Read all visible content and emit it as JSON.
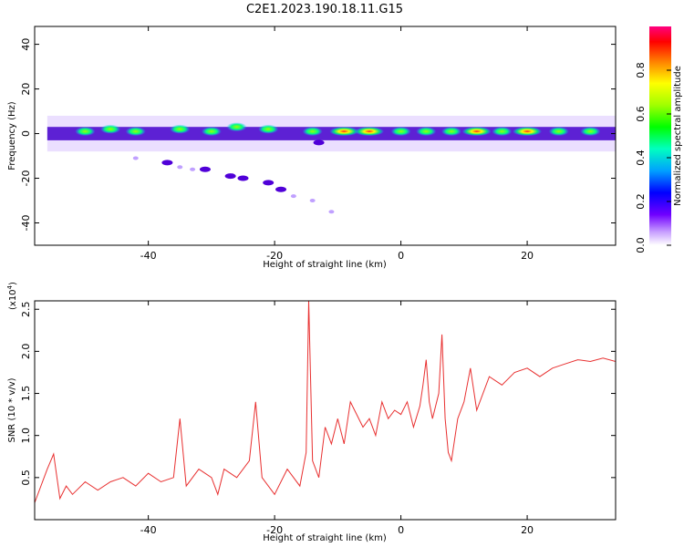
{
  "figure": {
    "title": "C2E1.2023.190.18.11.G15"
  },
  "chart_data": [
    {
      "type": "heatmap",
      "xlabel": "Height of straight line (km)",
      "ylabel": "Frequency (Hz)",
      "xlim": [
        -58,
        34
      ],
      "ylim": [
        -50,
        48
      ],
      "xticks": [
        -40,
        -20,
        0,
        20
      ],
      "yticks": [
        -40,
        -20,
        0,
        20,
        40
      ],
      "main_band": {
        "y_min": -3,
        "y_max": 3,
        "x_start": -56,
        "x_end": 34,
        "color": "#4400cc"
      },
      "hot_spots": [
        {
          "x": -50,
          "y": 1,
          "amplitude": 0.5
        },
        {
          "x": -46,
          "y": 2,
          "amplitude": 0.45
        },
        {
          "x": -42,
          "y": 1,
          "amplitude": 0.55
        },
        {
          "x": -35,
          "y": 2,
          "amplitude": 0.5
        },
        {
          "x": -30,
          "y": 1,
          "amplitude": 0.45
        },
        {
          "x": -26,
          "y": 3,
          "amplitude": 0.55
        },
        {
          "x": -21,
          "y": 2,
          "amplitude": 0.5
        },
        {
          "x": -14,
          "y": 1,
          "amplitude": 0.55
        },
        {
          "x": -9,
          "y": 1,
          "amplitude": 0.9
        },
        {
          "x": -5,
          "y": 1,
          "amplitude": 0.95
        },
        {
          "x": 0,
          "y": 1,
          "amplitude": 0.75
        },
        {
          "x": 4,
          "y": 1,
          "amplitude": 0.7
        },
        {
          "x": 8,
          "y": 1,
          "amplitude": 0.65
        },
        {
          "x": 12,
          "y": 1,
          "amplitude": 0.85
        },
        {
          "x": 16,
          "y": 1,
          "amplitude": 0.6
        },
        {
          "x": 20,
          "y": 1,
          "amplitude": 0.9
        },
        {
          "x": 25,
          "y": 1,
          "amplitude": 0.6
        },
        {
          "x": 30,
          "y": 1,
          "amplitude": 0.55
        }
      ],
      "side_blobs": [
        {
          "x": -37,
          "y": -13
        },
        {
          "x": -31,
          "y": -16
        },
        {
          "x": -27,
          "y": -19
        },
        {
          "x": -25,
          "y": -20
        },
        {
          "x": -21,
          "y": -22
        },
        {
          "x": -19,
          "y": -25
        },
        {
          "x": -13,
          "y": -4
        }
      ],
      "faint_dots": [
        {
          "x": -42,
          "y": -11
        },
        {
          "x": -35,
          "y": -15
        },
        {
          "x": -33,
          "y": -16
        },
        {
          "x": -17,
          "y": -28
        },
        {
          "x": -14,
          "y": -30
        },
        {
          "x": -11,
          "y": -35
        }
      ]
    },
    {
      "type": "line",
      "xlabel": "Height of straight line (km)",
      "ylabel": "SNR (10 * v/v)",
      "yscale_label": "(x10",
      "yscale_exponent": "4",
      "xlim": [
        -58,
        34
      ],
      "ylim": [
        0,
        26000
      ],
      "xticks": [
        -40,
        -20,
        0,
        20
      ],
      "yticks": [
        5000,
        10000,
        15000,
        20000,
        25000
      ],
      "ytick_labels": [
        "0.5",
        "1.0",
        "1.5",
        "2.0",
        "2.5"
      ],
      "series": [
        {
          "color": "#e83030",
          "x": [
            -58,
            -56,
            -55,
            -54,
            -53,
            -52,
            -50,
            -48,
            -46,
            -44,
            -42,
            -40,
            -38,
            -36,
            -35,
            -34,
            -32,
            -30,
            -29,
            -28,
            -26,
            -24,
            -23,
            -22,
            -20,
            -18,
            -16,
            -15,
            -14.6,
            -14,
            -13,
            -12,
            -11,
            -10,
            -9,
            -8,
            -6,
            -5,
            -4,
            -3,
            -2,
            -1,
            0,
            1,
            2,
            3,
            3.5,
            4,
            4.5,
            5,
            6,
            6.5,
            7,
            7.5,
            8,
            9,
            10,
            11,
            12,
            14,
            16,
            18,
            20,
            22,
            24,
            26,
            28,
            30,
            32,
            34
          ],
          "y": [
            2000,
            6000,
            7800,
            2500,
            4000,
            3000,
            4500,
            3500,
            4500,
            5000,
            4000,
            5500,
            4500,
            5000,
            12000,
            4000,
            6000,
            5000,
            3000,
            6000,
            5000,
            7000,
            14000,
            5000,
            3000,
            6000,
            4000,
            8000,
            26000,
            7000,
            5000,
            11000,
            9000,
            12000,
            9000,
            14000,
            11000,
            12000,
            10000,
            14000,
            12000,
            13000,
            12500,
            14000,
            11000,
            13500,
            16000,
            19000,
            14000,
            12000,
            15000,
            22000,
            12000,
            8000,
            7000,
            12000,
            14000,
            18000,
            13000,
            17000,
            16000,
            17500,
            18000,
            17000,
            18000,
            18500,
            19000,
            18800,
            19200,
            18800
          ]
        }
      ]
    }
  ],
  "colorbar": {
    "label": "Normalized spectral amplitude",
    "ticks": [
      "0.0",
      "0.2",
      "0.4",
      "0.6",
      "0.8"
    ],
    "tick_values": [
      0,
      0.2,
      0.4,
      0.6,
      0.8
    ],
    "colors": [
      "#ffffff",
      "#c8a0ff",
      "#7000ff",
      "#0000ff",
      "#00a0ff",
      "#00ffc0",
      "#00ff00",
      "#a0ff00",
      "#ffff00",
      "#ff8000",
      "#ff0000",
      "#ff0080"
    ]
  }
}
